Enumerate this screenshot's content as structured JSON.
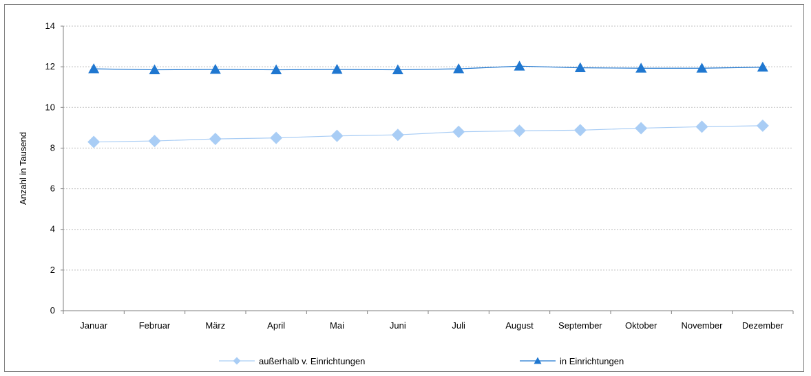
{
  "chart_data": {
    "type": "line",
    "title": "",
    "xlabel": "",
    "ylabel": "Anzahl in Tausend",
    "ylim": [
      0,
      14
    ],
    "yticks": [
      0,
      2,
      4,
      6,
      8,
      10,
      12,
      14
    ],
    "grid": true,
    "legend_position": "bottom",
    "categories": [
      "Januar",
      "Februar",
      "März",
      "April",
      "Mai",
      "Juni",
      "Juli",
      "August",
      "September",
      "Oktober",
      "November",
      "Dezember"
    ],
    "series": [
      {
        "name": "außerhalb v. Einrichtungen",
        "marker": "diamond",
        "color": "#a9cdf5",
        "values": [
          8.3,
          8.35,
          8.45,
          8.5,
          8.6,
          8.65,
          8.8,
          8.85,
          8.88,
          8.98,
          9.05,
          9.1
        ]
      },
      {
        "name": "in Einrichtungen",
        "marker": "triangle",
        "color": "#1f77d0",
        "values": [
          11.9,
          11.85,
          11.87,
          11.85,
          11.87,
          11.85,
          11.9,
          12.03,
          11.95,
          11.93,
          11.93,
          11.98
        ]
      }
    ]
  }
}
